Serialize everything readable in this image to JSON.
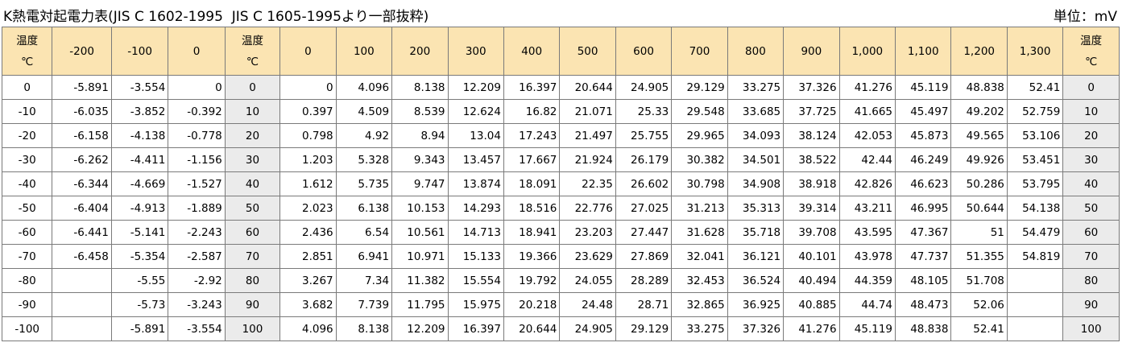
{
  "title": "K熱電対起電力表(JIS C 1602-1995  JIS C 1605-1995より一部抜粋)",
  "unit_label": "単位：mV",
  "header": {
    "temp_label_line1": "温度",
    "temp_label_line2": "℃",
    "neg_columns": [
      "-200",
      "-100",
      "0"
    ],
    "pos_columns": [
      "0",
      "100",
      "200",
      "300",
      "400",
      "500",
      "600",
      "700",
      "800",
      "900",
      "1,000",
      "1,100",
      "1,200",
      "1,300"
    ]
  },
  "rows": [
    {
      "neg_label": "0",
      "neg": [
        "-5.891",
        "-3.554",
        "0"
      ],
      "pos_label": "0",
      "pos": [
        "0",
        "4.096",
        "8.138",
        "12.209",
        "16.397",
        "20.644",
        "24.905",
        "29.129",
        "33.275",
        "37.326",
        "41.276",
        "45.119",
        "48.838",
        "52.41"
      ]
    },
    {
      "neg_label": "-10",
      "neg": [
        "-6.035",
        "-3.852",
        "-0.392"
      ],
      "pos_label": "10",
      "pos": [
        "0.397",
        "4.509",
        "8.539",
        "12.624",
        "16.82",
        "21.071",
        "25.33",
        "29.548",
        "33.685",
        "37.725",
        "41.665",
        "45.497",
        "49.202",
        "52.759"
      ]
    },
    {
      "neg_label": "-20",
      "neg": [
        "-6.158",
        "-4.138",
        "-0.778"
      ],
      "pos_label": "20",
      "pos": [
        "0.798",
        "4.92",
        "8.94",
        "13.04",
        "17.243",
        "21.497",
        "25.755",
        "29.965",
        "34.093",
        "38.124",
        "42.053",
        "45.873",
        "49.565",
        "53.106"
      ]
    },
    {
      "neg_label": "-30",
      "neg": [
        "-6.262",
        "-4.411",
        "-1.156"
      ],
      "pos_label": "30",
      "pos": [
        "1.203",
        "5.328",
        "9.343",
        "13.457",
        "17.667",
        "21.924",
        "26.179",
        "30.382",
        "34.501",
        "38.522",
        "42.44",
        "46.249",
        "49.926",
        "53.451"
      ]
    },
    {
      "neg_label": "-40",
      "neg": [
        "-6.344",
        "-4.669",
        "-1.527"
      ],
      "pos_label": "40",
      "pos": [
        "1.612",
        "5.735",
        "9.747",
        "13.874",
        "18.091",
        "22.35",
        "26.602",
        "30.798",
        "34.908",
        "38.918",
        "42.826",
        "46.623",
        "50.286",
        "53.795"
      ]
    },
    {
      "neg_label": "-50",
      "neg": [
        "-6.404",
        "-4.913",
        "-1.889"
      ],
      "pos_label": "50",
      "pos": [
        "2.023",
        "6.138",
        "10.153",
        "14.293",
        "18.516",
        "22.776",
        "27.025",
        "31.213",
        "35.313",
        "39.314",
        "43.211",
        "46.995",
        "50.644",
        "54.138"
      ]
    },
    {
      "neg_label": "-60",
      "neg": [
        "-6.441",
        "-5.141",
        "-2.243"
      ],
      "pos_label": "60",
      "pos": [
        "2.436",
        "6.54",
        "10.561",
        "14.713",
        "18.941",
        "23.203",
        "27.447",
        "31.628",
        "35.718",
        "39.708",
        "43.595",
        "47.367",
        "51",
        "54.479"
      ]
    },
    {
      "neg_label": "-70",
      "neg": [
        "-6.458",
        "-5.354",
        "-2.587"
      ],
      "pos_label": "70",
      "pos": [
        "2.851",
        "6.941",
        "10.971",
        "15.133",
        "19.366",
        "23.629",
        "27.869",
        "32.041",
        "36.121",
        "40.101",
        "43.978",
        "47.737",
        "51.355",
        "54.819"
      ]
    },
    {
      "neg_label": "-80",
      "neg": [
        "",
        "-5.55",
        "-2.92"
      ],
      "pos_label": "80",
      "pos": [
        "3.267",
        "7.34",
        "11.382",
        "15.554",
        "19.792",
        "24.055",
        "28.289",
        "32.453",
        "36.524",
        "40.494",
        "44.359",
        "48.105",
        "51.708",
        ""
      ]
    },
    {
      "neg_label": "-90",
      "neg": [
        "",
        "-5.73",
        "-3.243"
      ],
      "pos_label": "90",
      "pos": [
        "3.682",
        "7.739",
        "11.795",
        "15.975",
        "20.218",
        "24.48",
        "28.71",
        "32.865",
        "36.925",
        "40.885",
        "44.74",
        "48.473",
        "52.06",
        ""
      ]
    },
    {
      "neg_label": "-100",
      "neg": [
        "",
        "-5.891",
        "-3.554"
      ],
      "pos_label": "100",
      "pos": [
        "4.096",
        "8.138",
        "12.209",
        "16.397",
        "20.644",
        "24.905",
        "29.129",
        "33.275",
        "37.326",
        "41.276",
        "45.119",
        "48.838",
        "52.41",
        ""
      ]
    }
  ],
  "colors": {
    "header_bg": "#fbe4b2",
    "label_column_bg": "#ebebeb",
    "border": "#7a7a7a"
  }
}
